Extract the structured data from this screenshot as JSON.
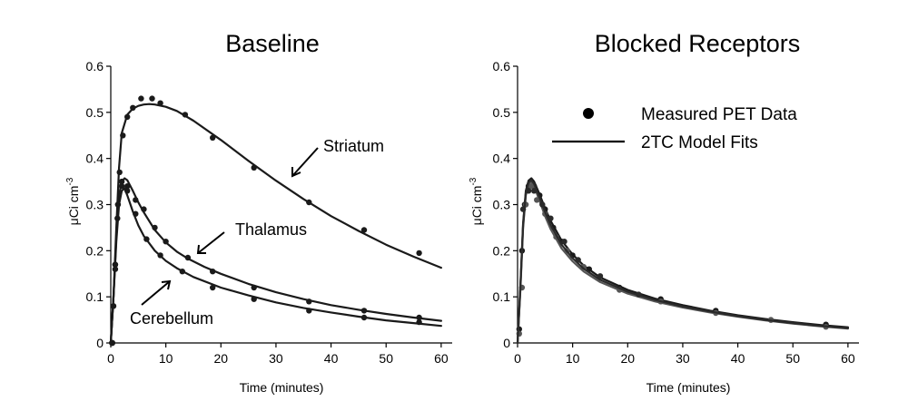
{
  "chart_data": [
    {
      "type": "scatter",
      "title": "Baseline",
      "xlabel": "Time (minutes)",
      "ylabel": "μCi cm-3",
      "xlim": [
        0,
        62
      ],
      "ylim": [
        0,
        0.6
      ],
      "xticks": [
        0,
        10,
        20,
        30,
        40,
        50,
        60
      ],
      "yticks": [
        0,
        0.1,
        0.2,
        0.3,
        0.4,
        0.5,
        0.6
      ],
      "grid": false,
      "series": [
        {
          "name": "Striatum",
          "color": "#1a1a1a",
          "points": [
            [
              0.2,
              0.0
            ],
            [
              0.5,
              0.08
            ],
            [
              0.8,
              0.17
            ],
            [
              1.2,
              0.27
            ],
            [
              1.6,
              0.37
            ],
            [
              2.2,
              0.45
            ],
            [
              3.0,
              0.49
            ],
            [
              4.0,
              0.51
            ],
            [
              5.5,
              0.53
            ],
            [
              7.5,
              0.53
            ],
            [
              9.0,
              0.52
            ],
            [
              13.5,
              0.495
            ],
            [
              18.5,
              0.445
            ],
            [
              26,
              0.38
            ],
            [
              36,
              0.305
            ],
            [
              46,
              0.245
            ],
            [
              56,
              0.195
            ]
          ],
          "fit": [
            [
              0,
              0
            ],
            [
              0.5,
              0.1
            ],
            [
              1,
              0.25
            ],
            [
              1.5,
              0.38
            ],
            [
              2,
              0.455
            ],
            [
              3,
              0.495
            ],
            [
              4,
              0.508
            ],
            [
              5,
              0.514
            ],
            [
              6,
              0.517
            ],
            [
              7,
              0.518
            ],
            [
              8,
              0.517
            ],
            [
              10,
              0.512
            ],
            [
              12,
              0.503
            ],
            [
              15,
              0.482
            ],
            [
              20,
              0.44
            ],
            [
              25,
              0.395
            ],
            [
              30,
              0.352
            ],
            [
              35,
              0.312
            ],
            [
              40,
              0.275
            ],
            [
              45,
              0.243
            ],
            [
              50,
              0.213
            ],
            [
              55,
              0.187
            ],
            [
              60,
              0.163
            ]
          ]
        },
        {
          "name": "Thalamus",
          "color": "#1a1a1a",
          "points": [
            [
              0.3,
              0.0
            ],
            [
              0.8,
              0.17
            ],
            [
              1.3,
              0.3
            ],
            [
              2.0,
              0.35
            ],
            [
              3.0,
              0.34
            ],
            [
              4.5,
              0.31
            ],
            [
              6.0,
              0.29
            ],
            [
              8.0,
              0.25
            ],
            [
              10,
              0.22
            ],
            [
              14,
              0.185
            ],
            [
              18.5,
              0.155
            ],
            [
              26,
              0.12
            ],
            [
              36,
              0.09
            ],
            [
              46,
              0.07
            ],
            [
              56,
              0.055
            ]
          ],
          "fit": [
            [
              0,
              0
            ],
            [
              0.5,
              0.1
            ],
            [
              1,
              0.23
            ],
            [
              1.5,
              0.32
            ],
            [
              2,
              0.35
            ],
            [
              2.5,
              0.357
            ],
            [
              3,
              0.353
            ],
            [
              4,
              0.33
            ],
            [
              5,
              0.305
            ],
            [
              6,
              0.283
            ],
            [
              8,
              0.245
            ],
            [
              10,
              0.218
            ],
            [
              12,
              0.198
            ],
            [
              14,
              0.183
            ],
            [
              17,
              0.165
            ],
            [
              20,
              0.15
            ],
            [
              25,
              0.128
            ],
            [
              30,
              0.11
            ],
            [
              35,
              0.095
            ],
            [
              40,
              0.082
            ],
            [
              45,
              0.072
            ],
            [
              50,
              0.063
            ],
            [
              55,
              0.055
            ],
            [
              60,
              0.048
            ]
          ]
        },
        {
          "name": "Cerebellum",
          "color": "#1a1a1a",
          "points": [
            [
              0.3,
              0.0
            ],
            [
              0.8,
              0.16
            ],
            [
              1.3,
              0.3
            ],
            [
              2.0,
              0.34
            ],
            [
              3.0,
              0.33
            ],
            [
              4.5,
              0.28
            ],
            [
              6.5,
              0.225
            ],
            [
              9.0,
              0.19
            ],
            [
              13,
              0.155
            ],
            [
              18.5,
              0.12
            ],
            [
              26,
              0.095
            ],
            [
              36,
              0.07
            ],
            [
              46,
              0.055
            ],
            [
              56,
              0.045
            ]
          ],
          "fit": [
            [
              0,
              0
            ],
            [
              0.5,
              0.1
            ],
            [
              1,
              0.22
            ],
            [
              1.5,
              0.3
            ],
            [
              2,
              0.33
            ],
            [
              2.5,
              0.335
            ],
            [
              3,
              0.32
            ],
            [
              4,
              0.285
            ],
            [
              5,
              0.255
            ],
            [
              6,
              0.232
            ],
            [
              8,
              0.2
            ],
            [
              10,
              0.178
            ],
            [
              12,
              0.162
            ],
            [
              15,
              0.143
            ],
            [
              20,
              0.12
            ],
            [
              25,
              0.103
            ],
            [
              30,
              0.088
            ],
            [
              35,
              0.076
            ],
            [
              40,
              0.066
            ],
            [
              45,
              0.057
            ],
            [
              50,
              0.049
            ],
            [
              55,
              0.043
            ],
            [
              60,
              0.037
            ]
          ]
        }
      ],
      "annotations": [
        "Striatum",
        "Thalamus",
        "Cerebellum"
      ]
    },
    {
      "type": "scatter",
      "title": "Blocked Receptors",
      "xlabel": "Time (minutes)",
      "ylabel": "μCi cm-3",
      "xlim": [
        0,
        62
      ],
      "ylim": [
        0,
        0.6
      ],
      "xticks": [
        0,
        10,
        20,
        30,
        40,
        50,
        60
      ],
      "yticks": [
        0,
        0.1,
        0.2,
        0.3,
        0.4,
        0.5,
        0.6
      ],
      "grid": false,
      "legend": {
        "position": "top-right",
        "entries": [
          "Measured PET Data",
          "2TC Model Fits"
        ]
      },
      "series": [
        {
          "color": "#1a1a1a",
          "points": [
            [
              0.3,
              0.03
            ],
            [
              0.8,
              0.2
            ],
            [
              1.3,
              0.3
            ],
            [
              2.0,
              0.34
            ],
            [
              3.0,
              0.34
            ],
            [
              4.0,
              0.32
            ],
            [
              5.0,
              0.29
            ],
            [
              6.5,
              0.25
            ],
            [
              8.0,
              0.22
            ],
            [
              10,
              0.19
            ],
            [
              13,
              0.16
            ],
            [
              18.5,
              0.12
            ],
            [
              26,
              0.095
            ],
            [
              36,
              0.07
            ],
            [
              46,
              0.05
            ],
            [
              56,
              0.04
            ]
          ],
          "fit": [
            [
              0,
              0
            ],
            [
              0.5,
              0.12
            ],
            [
              1,
              0.26
            ],
            [
              1.5,
              0.33
            ],
            [
              2,
              0.352
            ],
            [
              2.5,
              0.357
            ],
            [
              3,
              0.35
            ],
            [
              4,
              0.322
            ],
            [
              5,
              0.292
            ],
            [
              6,
              0.265
            ],
            [
              8,
              0.222
            ],
            [
              10,
              0.192
            ],
            [
              12,
              0.168
            ],
            [
              15,
              0.142
            ],
            [
              20,
              0.115
            ],
            [
              25,
              0.096
            ],
            [
              30,
              0.082
            ],
            [
              35,
              0.07
            ],
            [
              40,
              0.06
            ],
            [
              45,
              0.052
            ],
            [
              50,
              0.045
            ],
            [
              55,
              0.039
            ],
            [
              60,
              0.034
            ]
          ]
        },
        {
          "color": "#555555",
          "points": [
            [
              0.3,
              0.02
            ],
            [
              0.8,
              0.12
            ],
            [
              1.5,
              0.3
            ],
            [
              2.5,
              0.34
            ],
            [
              3.5,
              0.31
            ],
            [
              5.0,
              0.28
            ],
            [
              7.0,
              0.23
            ],
            [
              9.0,
              0.2
            ],
            [
              12,
              0.165
            ],
            [
              18.5,
              0.115
            ],
            [
              26,
              0.09
            ],
            [
              36,
              0.065
            ],
            [
              46,
              0.05
            ],
            [
              56,
              0.035
            ]
          ],
          "fit": [
            [
              0,
              0
            ],
            [
              0.5,
              0.11
            ],
            [
              1,
              0.25
            ],
            [
              1.5,
              0.32
            ],
            [
              2,
              0.345
            ],
            [
              2.5,
              0.35
            ],
            [
              3,
              0.34
            ],
            [
              4,
              0.308
            ],
            [
              5,
              0.275
            ],
            [
              6,
              0.247
            ],
            [
              8,
              0.205
            ],
            [
              10,
              0.177
            ],
            [
              12,
              0.155
            ],
            [
              15,
              0.132
            ],
            [
              20,
              0.107
            ],
            [
              25,
              0.09
            ],
            [
              30,
              0.077
            ],
            [
              35,
              0.066
            ],
            [
              40,
              0.057
            ],
            [
              45,
              0.049
            ],
            [
              50,
              0.042
            ],
            [
              55,
              0.036
            ],
            [
              60,
              0.031
            ]
          ]
        },
        {
          "color": "#2a2a2a",
          "points": [
            [
              1.0,
              0.29
            ],
            [
              2.0,
              0.33
            ],
            [
              3.0,
              0.33
            ],
            [
              4.5,
              0.3
            ],
            [
              6.0,
              0.27
            ],
            [
              8.5,
              0.22
            ],
            [
              11,
              0.18
            ],
            [
              15,
              0.145
            ],
            [
              22,
              0.105
            ]
          ],
          "fit": [
            [
              0,
              0
            ],
            [
              0.5,
              0.115
            ],
            [
              1,
              0.255
            ],
            [
              1.5,
              0.325
            ],
            [
              2,
              0.348
            ],
            [
              2.5,
              0.353
            ],
            [
              3,
              0.345
            ],
            [
              4,
              0.315
            ],
            [
              5,
              0.284
            ],
            [
              6,
              0.256
            ],
            [
              8,
              0.213
            ],
            [
              10,
              0.184
            ],
            [
              12,
              0.161
            ],
            [
              15,
              0.137
            ],
            [
              20,
              0.111
            ],
            [
              25,
              0.093
            ],
            [
              30,
              0.079
            ],
            [
              35,
              0.068
            ],
            [
              40,
              0.058
            ],
            [
              45,
              0.05
            ],
            [
              50,
              0.043
            ],
            [
              55,
              0.037
            ],
            [
              60,
              0.032
            ]
          ]
        }
      ]
    }
  ]
}
